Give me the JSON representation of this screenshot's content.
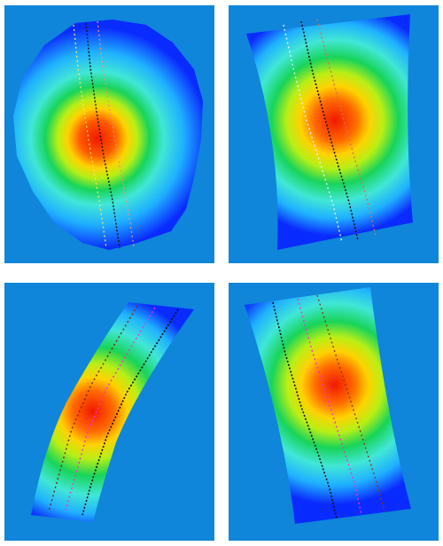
{
  "figure": {
    "background_color": "#0f86d9",
    "colormap": [
      "#0a2bff",
      "#1fb0ff",
      "#41e7d6",
      "#18d45a",
      "#b8ef16",
      "#ffd200",
      "#ff6a00",
      "#f11800"
    ],
    "panels": [
      {
        "id": "p1",
        "surface": "circular-disc",
        "curve_colors": [
          "#ffe35c",
          "#1b1b1b",
          "#ff8a70"
        ]
      },
      {
        "id": "p2",
        "surface": "curved-strip",
        "curve_colors": [
          "#e9f2ff",
          "#101010",
          "#d76f54"
        ]
      },
      {
        "id": "p3",
        "surface": "bent-strip",
        "curve_colors": [
          "#7a2608",
          "#ff2bd3",
          "#0a0a0a"
        ]
      },
      {
        "id": "p4",
        "surface": "curved-strip",
        "curve_colors": [
          "#111111",
          "#ff2bd3",
          "#8b3a12"
        ]
      }
    ]
  }
}
